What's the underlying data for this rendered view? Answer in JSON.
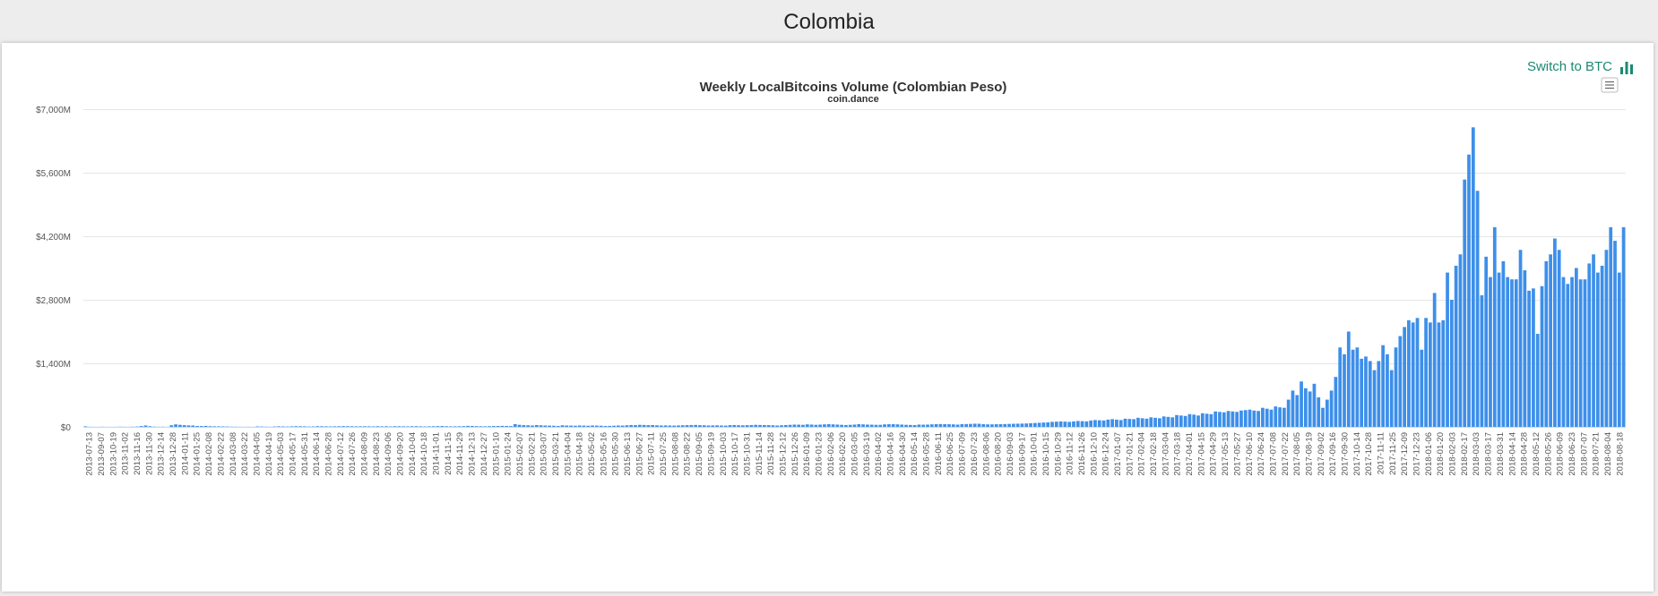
{
  "page": {
    "title": "Colombia"
  },
  "toolbar": {
    "switch_label": "Switch to BTC",
    "switch_icon": "bar-chart-icon",
    "menu_icon": "hamburger-menu-icon"
  },
  "colors": {
    "bar": "#3d8fea",
    "accent": "#1a8a73",
    "grid": "#e6e6e6"
  },
  "chart_data": {
    "type": "bar",
    "title": "Weekly LocalBitcoins Volume (Colombian Peso)",
    "subtitle": "coin.dance",
    "xlabel": "",
    "ylabel": "",
    "ylim": [
      0,
      7000
    ],
    "grid": true,
    "legend": "none",
    "y_ticks": [
      0,
      1400,
      2800,
      4200,
      5600,
      7000
    ],
    "y_tick_labels": [
      "$0",
      "$1,400M",
      "$2,800M",
      "$4,200M",
      "$5,600M",
      "$7,000M"
    ],
    "x_tick_labels": [
      "2013-07-13",
      "2013-09-07",
      "2013-10-19",
      "2013-11-02",
      "2013-11-16",
      "2013-11-30",
      "2013-12-14",
      "2013-12-28",
      "2014-01-11",
      "2014-01-25",
      "2014-02-08",
      "2014-02-22",
      "2014-03-08",
      "2014-03-22",
      "2014-04-05",
      "2014-04-19",
      "2014-05-03",
      "2014-05-17",
      "2014-05-31",
      "2014-06-14",
      "2014-06-28",
      "2014-07-12",
      "2014-07-26",
      "2014-08-09",
      "2014-08-23",
      "2014-09-06",
      "2014-09-20",
      "2014-10-04",
      "2014-10-18",
      "2014-11-01",
      "2014-11-15",
      "2014-11-29",
      "2014-12-13",
      "2014-12-27",
      "2015-01-10",
      "2015-01-24",
      "2015-02-07",
      "2015-02-21",
      "2015-03-07",
      "2015-03-21",
      "2015-04-04",
      "2015-04-18",
      "2015-05-02",
      "2015-05-16",
      "2015-05-30",
      "2015-06-13",
      "2015-06-27",
      "2015-07-11",
      "2015-07-25",
      "2015-08-08",
      "2015-08-22",
      "2015-09-05",
      "2015-09-19",
      "2015-10-03",
      "2015-10-17",
      "2015-10-31",
      "2015-11-14",
      "2015-11-28",
      "2015-12-12",
      "2015-12-26",
      "2016-01-09",
      "2016-01-23",
      "2016-02-06",
      "2016-02-20",
      "2016-03-05",
      "2016-03-19",
      "2016-04-02",
      "2016-04-16",
      "2016-04-30",
      "2016-05-14",
      "2016-05-28",
      "2016-06-11",
      "2016-06-25",
      "2016-07-09",
      "2016-07-23",
      "2016-08-06",
      "2016-08-20",
      "2016-09-03",
      "2016-09-17",
      "2016-10-01",
      "2016-10-15",
      "2016-10-29",
      "2016-11-12",
      "2016-11-26",
      "2016-12-10",
      "2016-12-24",
      "2017-01-07",
      "2017-01-21",
      "2017-02-04",
      "2017-02-18",
      "2017-03-04",
      "2017-03-18",
      "2017-04-01",
      "2017-04-15",
      "2017-04-29",
      "2017-05-13",
      "2017-05-27",
      "2017-06-10",
      "2017-06-24",
      "2017-07-08",
      "2017-07-22",
      "2017-08-05",
      "2017-08-19",
      "2017-09-02",
      "2017-09-16",
      "2017-09-30",
      "2017-10-14",
      "2017-10-28",
      "2017-11-11",
      "2017-11-25",
      "2017-12-09",
      "2017-12-23",
      "2018-01-06",
      "2018-01-20",
      "2018-02-03",
      "2018-02-17",
      "2018-03-03",
      "2018-03-17",
      "2018-03-31",
      "2018-04-14",
      "2018-04-28",
      "2018-05-12",
      "2018-05-26",
      "2018-06-09",
      "2018-06-23",
      "2018-07-07",
      "2018-07-21",
      "2018-08-04",
      "2018-08-18"
    ],
    "series": [
      {
        "values": [
          12,
          3,
          2,
          2,
          3,
          2,
          2,
          2,
          4,
          3,
          2,
          5,
          8,
          18,
          30,
          15,
          6,
          3,
          4,
          2,
          35,
          55,
          45,
          38,
          32,
          30,
          20,
          18,
          22,
          15,
          12,
          12,
          10,
          8,
          5,
          4,
          3,
          2,
          3,
          2,
          10,
          8,
          5,
          3,
          8,
          12,
          10,
          8,
          12,
          15,
          14,
          12,
          8,
          10,
          15,
          14,
          12,
          10,
          12,
          14,
          16,
          15,
          14,
          12,
          13,
          14,
          12,
          10,
          15,
          12,
          14,
          10,
          15,
          14,
          12,
          10,
          14,
          15,
          12,
          10,
          12,
          14,
          16,
          18,
          14,
          12,
          12,
          14,
          16,
          22,
          20,
          16,
          14,
          12,
          16,
          18,
          20,
          22,
          20,
          18,
          60,
          45,
          38,
          35,
          30,
          40,
          35,
          30,
          28,
          25,
          20,
          35,
          30,
          28,
          25,
          30,
          28,
          25,
          30,
          28,
          25,
          20,
          22,
          25,
          30,
          28,
          35,
          40,
          38,
          45,
          42,
          38,
          40,
          35,
          30,
          32,
          30,
          28,
          32,
          35,
          38,
          40,
          42,
          38,
          35,
          30,
          32,
          34,
          30,
          28,
          38,
          40,
          36,
          34,
          38,
          40,
          45,
          42,
          40,
          38,
          35,
          30,
          35,
          40,
          45,
          50,
          48,
          45,
          55,
          50,
          45,
          50,
          55,
          60,
          55,
          50,
          45,
          40,
          45,
          50,
          60,
          55,
          50,
          48,
          45,
          45,
          55,
          58,
          60,
          55,
          50,
          45,
          42,
          40,
          50,
          48,
          50,
          55,
          60,
          62,
          60,
          58,
          55,
          50,
          60,
          62,
          65,
          70,
          68,
          60,
          55,
          55,
          58,
          60,
          62,
          65,
          68,
          70,
          72,
          75,
          80,
          85,
          90,
          95,
          100,
          110,
          115,
          120,
          115,
          110,
          120,
          130,
          125,
          120,
          140,
          150,
          145,
          140,
          160,
          170,
          160,
          150,
          180,
          175,
          170,
          200,
          190,
          180,
          210,
          200,
          190,
          230,
          220,
          210,
          260,
          250,
          240,
          280,
          270,
          250,
          300,
          290,
          280,
          340,
          330,
          320,
          350,
          340,
          330,
          360,
          370,
          380,
          360,
          350,
          420,
          400,
          380,
          450,
          430,
          420,
          600,
          800,
          700,
          1000,
          850,
          780,
          950,
          650,
          420,
          600,
          800,
          1100,
          1750,
          1600,
          2100,
          1700,
          1750,
          1500,
          1550,
          1450,
          1250,
          1450,
          1800,
          1600,
          1250,
          1750,
          2000,
          2200,
          2350,
          2300,
          2400,
          1700,
          2400,
          2300,
          2950,
          2300,
          2350,
          3400,
          2800,
          3550,
          3800,
          5450,
          6000,
          6600,
          5200,
          2900,
          3750,
          3300,
          4400,
          3400,
          3650,
          3300,
          3250,
          3250,
          3900,
          3450,
          3000,
          3050,
          2050,
          3100,
          3650,
          3800,
          4150,
          3900,
          3300,
          3150,
          3300,
          3500,
          3250,
          3250,
          3600,
          3800,
          3400,
          3550,
          3900,
          4400,
          4100,
          3400,
          4400
        ]
      }
    ]
  }
}
